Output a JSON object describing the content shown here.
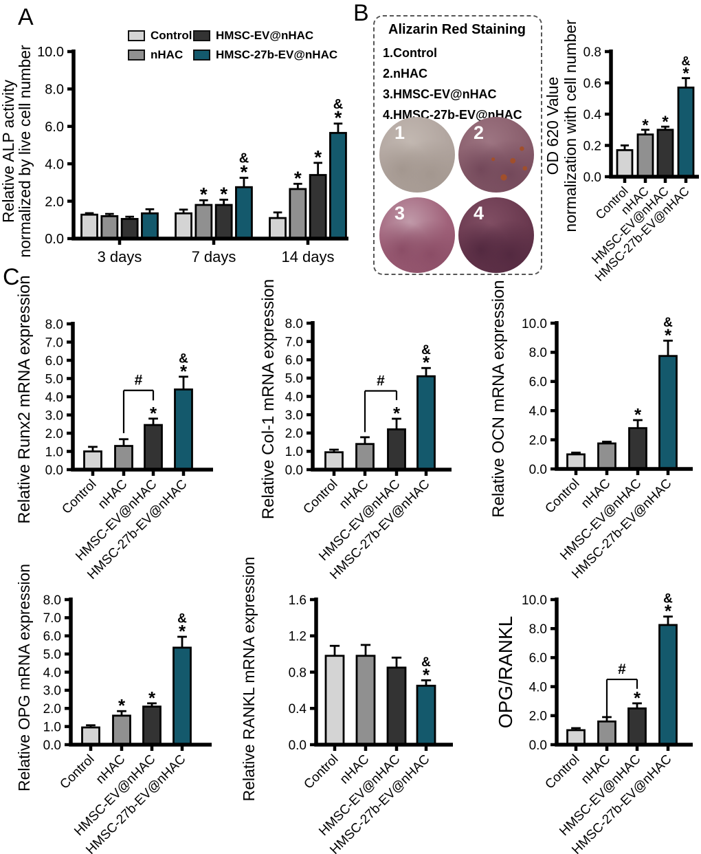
{
  "colors": {
    "control": "#d4d4d4",
    "nhac": "#909090",
    "hmsc_ev": "#333333",
    "hmsc_27b_ev": "#14596c",
    "axis": "#000000"
  },
  "palette": [
    "control",
    "nhac",
    "hmsc_ev",
    "hmsc_27b_ev"
  ],
  "panels": {
    "a": {
      "label": "A"
    },
    "b": {
      "label": "B",
      "staining": {
        "title": "Alizarin Red Staining",
        "items": [
          "1.Control",
          "2.nHAC",
          "3.HMSC-EV@nHAC",
          "4.HMSC-27b-EV@nHAC"
        ],
        "circles": [
          {
            "number": "1",
            "light": "#c2b8b1",
            "base": "#b2a6a0",
            "dark": "#a3978f"
          },
          {
            "number": "2",
            "light": "#9d7582",
            "base": "#8a5f6d",
            "dark": "#73485a",
            "speckle": "#a14f2b"
          },
          {
            "number": "3",
            "light": "#c09aa9",
            "base": "#a1637b",
            "dark": "#8b4d66"
          },
          {
            "number": "4",
            "light": "#804e63",
            "base": "#6b3a50",
            "dark": "#532940"
          }
        ]
      }
    },
    "c": {
      "label": "C"
    }
  },
  "chart_data": [
    {
      "id": "alp",
      "type": "bar",
      "ylabel_lines": [
        "Relative ALP activity",
        "normalized by live cell number"
      ],
      "ylim": [
        0,
        10
      ],
      "ytick_step": 2,
      "categories": [
        "3 days",
        "7 days",
        "14 days"
      ],
      "series": [
        {
          "name": "Control",
          "color": "control",
          "values": [
            1.28,
            1.35,
            1.1
          ],
          "errors": [
            0.08,
            0.2,
            0.3
          ],
          "sig": [
            "",
            "",
            ""
          ]
        },
        {
          "name": "nHAC",
          "color": "nhac",
          "values": [
            1.2,
            1.8,
            2.65
          ],
          "errors": [
            0.12,
            0.25,
            0.28
          ],
          "sig": [
            "",
            "*",
            "*"
          ]
        },
        {
          "name": "HMSC-EV@nHAC",
          "color": "hmsc_ev",
          "values": [
            1.05,
            1.8,
            3.4
          ],
          "errors": [
            0.12,
            0.28,
            0.65
          ],
          "sig": [
            "",
            "*",
            "*"
          ]
        },
        {
          "name": "HMSC-27b-EV@nHAC",
          "color": "hmsc_27b_ev",
          "values": [
            1.35,
            2.75,
            5.65
          ],
          "errors": [
            0.22,
            0.5,
            0.5
          ],
          "sig": [
            "",
            "&*",
            "&*"
          ]
        }
      ]
    },
    {
      "id": "od620",
      "type": "bar",
      "ylabel_lines": [
        "OD 620 Value",
        "normalization with cell number"
      ],
      "ylim": [
        0,
        0.8
      ],
      "ytick_step": 0.2,
      "categories": [
        "Control",
        "nHAC",
        "HMSC-EV@nHAC",
        "HMSC-27b-EV@nHAC"
      ],
      "values": [
        0.17,
        0.27,
        0.3,
        0.57
      ],
      "errors": [
        0.03,
        0.03,
        0.02,
        0.06
      ],
      "sig": [
        "",
        "*",
        "*",
        "&*"
      ]
    },
    {
      "id": "runx2",
      "type": "bar",
      "ylabel_lines": [
        "Relative Runx2 mRNA expression"
      ],
      "ylim": [
        0,
        8
      ],
      "ytick_step": 1,
      "categories": [
        "Control",
        "nHAC",
        "HMSC-EV@nHAC",
        "HMSC-27b-EV@nHAC"
      ],
      "values": [
        1.0,
        1.3,
        2.45,
        4.4
      ],
      "errors": [
        0.25,
        0.37,
        0.35,
        0.7
      ],
      "sig": [
        "",
        "",
        "*",
        "&*"
      ],
      "bracket": {
        "from": 1,
        "to": 2,
        "label": "#",
        "y": 4.35,
        "leg_left": 2.0,
        "leg_right": 3.8
      }
    },
    {
      "id": "col1",
      "type": "bar",
      "ylabel_lines": [
        "Relative Col-1 mRNA expression"
      ],
      "ylim": [
        0,
        8
      ],
      "ytick_step": 1,
      "categories": [
        "Control",
        "nHAC",
        "HMSC-EV@nHAC",
        "HMSC-27b-EV@nHAC"
      ],
      "values": [
        0.95,
        1.4,
        2.2,
        5.1
      ],
      "errors": [
        0.14,
        0.37,
        0.58,
        0.45
      ],
      "sig": [
        "",
        "",
        "*",
        "&*"
      ],
      "bracket": {
        "from": 1,
        "to": 2,
        "label": "#",
        "y": 4.3,
        "leg_left": 2.05,
        "leg_right": 3.8
      }
    },
    {
      "id": "ocn",
      "type": "bar",
      "ylabel_lines": [
        "Relative OCN mRNA expression"
      ],
      "ylim": [
        0,
        10
      ],
      "ytick_step": 2,
      "categories": [
        "Control",
        "nHAC",
        "HMSC-EV@nHAC",
        "HMSC-27b-EV@nHAC"
      ],
      "values": [
        1.0,
        1.75,
        2.8,
        7.75
      ],
      "errors": [
        0.12,
        0.12,
        0.55,
        1.05
      ],
      "sig": [
        "",
        "",
        "*",
        "&*"
      ]
    },
    {
      "id": "opg",
      "type": "bar",
      "ylabel_lines": [
        "Relative OPG mRNA expression"
      ],
      "ylim": [
        0,
        8
      ],
      "ytick_step": 1,
      "categories": [
        "Control",
        "nHAC",
        "HMSC-EV@nHAC",
        "HMSC-27b-EV@nHAC"
      ],
      "values": [
        0.95,
        1.6,
        2.1,
        5.35
      ],
      "errors": [
        0.12,
        0.25,
        0.18,
        0.6
      ],
      "sig": [
        "",
        "*",
        "*",
        "&*"
      ]
    },
    {
      "id": "rankl",
      "type": "bar",
      "ylabel_lines": [
        "Relative RANKL mRNA expression"
      ],
      "ylim": [
        0,
        1.6
      ],
      "ytick_step": 0.4,
      "categories": [
        "Control",
        "nHAC",
        "HMSC-EV@nHAC",
        "HMSC-27b-EV@nHAC"
      ],
      "values": [
        0.98,
        0.98,
        0.85,
        0.65
      ],
      "errors": [
        0.11,
        0.12,
        0.11,
        0.06
      ],
      "sig": [
        "",
        "",
        "",
        "&*"
      ]
    },
    {
      "id": "opgrankl",
      "type": "bar",
      "ylabel_lines": [
        "OPG/RANKL"
      ],
      "ylim": [
        0,
        10
      ],
      "ytick_step": 2,
      "categories": [
        "Control",
        "nHAC",
        "HMSC-EV@nHAC",
        "HMSC-27b-EV@nHAC"
      ],
      "values": [
        1.0,
        1.6,
        2.5,
        8.25
      ],
      "errors": [
        0.14,
        0.3,
        0.35,
        0.58
      ],
      "sig": [
        "",
        "",
        "*",
        "&*"
      ],
      "bracket": {
        "from": 1,
        "to": 2,
        "label": "#",
        "y": 4.5,
        "leg_left": 1.75,
        "leg_right": 3.85
      }
    }
  ]
}
